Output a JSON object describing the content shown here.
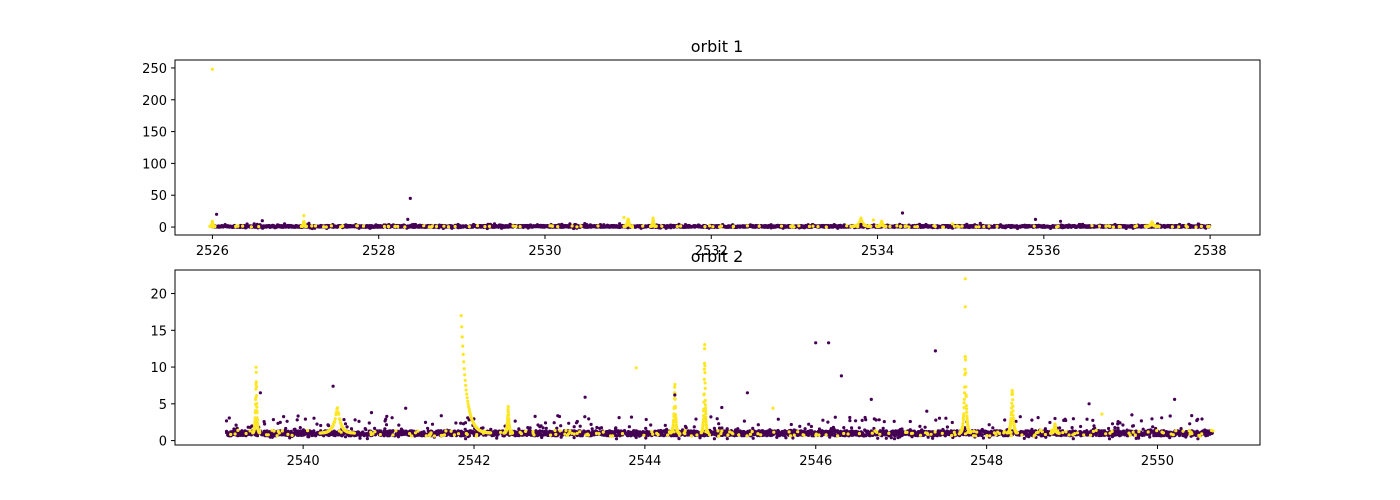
{
  "chart_data": [
    {
      "type": "scatter",
      "title": "orbit 1",
      "xlabel": "",
      "ylabel": "",
      "xlim": [
        2525.55,
        2538.6
      ],
      "ylim": [
        -12.5,
        262.5
      ],
      "xticks": [
        2526,
        2528,
        2530,
        2532,
        2534,
        2536,
        2538
      ],
      "yticks": [
        0,
        50,
        100,
        150,
        200,
        250
      ],
      "grid": false,
      "x_range": [
        2526.0,
        2538.0
      ],
      "colors": {
        "class_0": "#440154",
        "class_1": "#fde725"
      },
      "baseline": 1.0,
      "series": [
        {
          "values": [
            [
              2526.05,
              20
            ],
            [
              2526.6,
              10
            ],
            [
              2528.35,
              12
            ],
            [
              2528.38,
              45
            ],
            [
              2534.3,
              22
            ],
            [
              2535.9,
              12
            ],
            [
              2536.2,
              9
            ],
            [
              2530.3,
              5
            ],
            [
              2533.8,
              4
            ]
          ]
        },
        {
          "values": [
            [
              2526.0,
              248
            ],
            [
              2526.0,
              9
            ],
            [
              2527.1,
              18
            ],
            [
              2530.95,
              15
            ],
            [
              2531.0,
              12
            ],
            [
              2531.3,
              14
            ],
            [
              2533.8,
              14
            ],
            [
              2533.95,
              11
            ],
            [
              2534.05,
              9
            ],
            [
              2534.9,
              5
            ],
            [
              2537.3,
              8
            ]
          ]
        }
      ],
      "bursts": [
        {
          "x": 2526.0,
          "peak": 9,
          "width": 0.03
        },
        {
          "x": 2527.1,
          "peak": 10,
          "width": 0.03
        },
        {
          "x": 2531.0,
          "peak": 15,
          "width": 0.05
        },
        {
          "x": 2531.3,
          "peak": 14,
          "width": 0.03
        },
        {
          "x": 2533.8,
          "peak": 14,
          "width": 0.12
        },
        {
          "x": 2534.05,
          "peak": 10,
          "width": 0.05
        },
        {
          "x": 2537.3,
          "peak": 8,
          "width": 0.08
        }
      ]
    },
    {
      "type": "scatter",
      "title": "orbit 2",
      "xlabel": "",
      "ylabel": "",
      "xlim": [
        2538.5,
        2551.2
      ],
      "ylim": [
        -0.6,
        23.2
      ],
      "xticks": [
        2540,
        2542,
        2544,
        2546,
        2548,
        2550
      ],
      "yticks": [
        0,
        5,
        10,
        15,
        20
      ],
      "grid": false,
      "x_range": [
        2539.1,
        2550.65
      ],
      "colors": {
        "class_0": "#440154",
        "class_1": "#fde725"
      },
      "baseline": 1.0,
      "series": [
        {
          "values": [
            [
              2546.0,
              13.3
            ],
            [
              2546.15,
              13.3
            ],
            [
              2546.3,
              8.8
            ],
            [
              2547.4,
              12.2
            ],
            [
              2540.35,
              7.4
            ],
            [
              2539.5,
              6.5
            ],
            [
              2545.2,
              6.5
            ],
            [
              2546.65,
              5.6
            ],
            [
              2550.2,
              5.6
            ],
            [
              2549.2,
              5.0
            ],
            [
              2543.3,
              5.9
            ],
            [
              2544.35,
              6.2
            ],
            [
              2540.8,
              3.8
            ],
            [
              2541.2,
              4.4
            ],
            [
              2544.9,
              4.5
            ],
            [
              2547.3,
              4.0
            ],
            [
              2548.8,
              3.0
            ],
            [
              2549.7,
              3.5
            ],
            [
              2550.4,
              3.4
            ]
          ]
        },
        {
          "values": [
            [
              2543.9,
              9.9
            ],
            [
              2547.75,
              22
            ],
            [
              2547.75,
              18.2
            ],
            [
              2545.5,
              4.4
            ],
            [
              2549.35,
              3.6
            ]
          ]
        }
      ],
      "bursts": [
        {
          "x": 2539.45,
          "peak": 11,
          "width": 0.04
        },
        {
          "x": 2540.4,
          "peak": 5,
          "width": 0.2
        },
        {
          "x": 2541.85,
          "peak": 17,
          "width": 0.35,
          "decay": true
        },
        {
          "x": 2542.4,
          "peak": 5,
          "width": 0.05
        },
        {
          "x": 2544.35,
          "peak": 8.5,
          "width": 0.05
        },
        {
          "x": 2544.7,
          "peak": 14.3,
          "width": 0.04
        },
        {
          "x": 2547.75,
          "peak": 14,
          "width": 0.06
        },
        {
          "x": 2548.3,
          "peak": 8,
          "width": 0.06
        },
        {
          "x": 2548.8,
          "peak": 2.5,
          "width": 0.05
        }
      ]
    }
  ]
}
